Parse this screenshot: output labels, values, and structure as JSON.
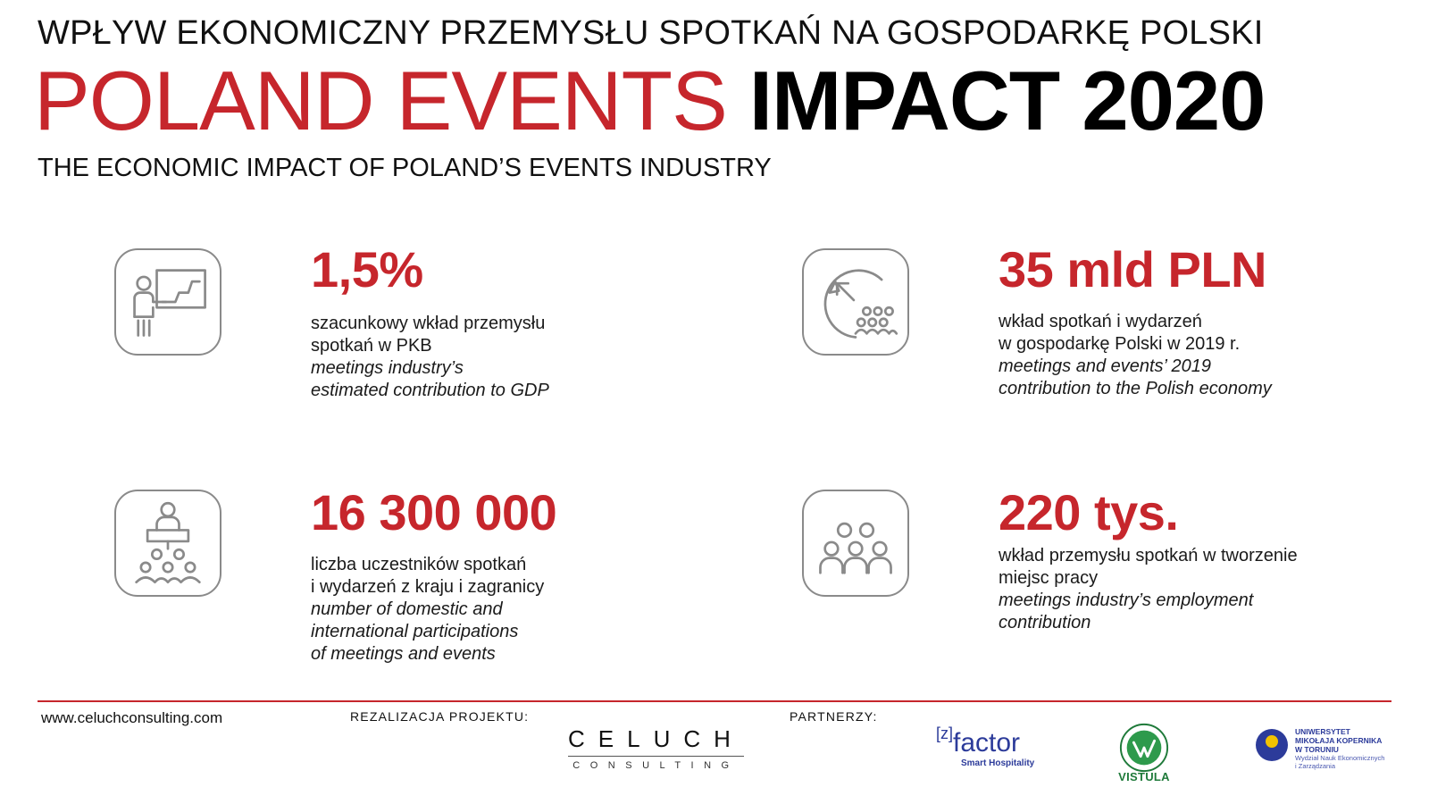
{
  "header": {
    "title_pl": "WPŁYW EKONOMICZNY PRZEMYSŁU SPOTKAŃ NA GOSPODARKĘ POLSKI",
    "title_main_red": "POLAND EVENTS",
    "title_main_black": "IMPACT 2020",
    "title_en": "THE ECONOMIC IMPACT OF POLAND’S EVENTS INDUSTRY"
  },
  "stats": [
    {
      "value": "1,5%",
      "pl_lines": [
        "szacunkowy wkład przemysłu",
        "spotkań w PKB"
      ],
      "en_lines": [
        "meetings industry’s",
        "estimated contribution to GDP"
      ],
      "icon": "presenter-chart-icon"
    },
    {
      "value": "35 mld PLN",
      "pl_lines": [
        "wkład spotkań i wydarzeń",
        "w gospodarkę Polski w 2019 r."
      ],
      "en_lines": [
        "meetings and events’ 2019",
        "contribution to the Polish economy"
      ],
      "icon": "growth-arrow-audience-icon"
    },
    {
      "value": "16 300 000",
      "pl_lines": [
        "liczba uczestników spotkań",
        "i wydarzeń z kraju i zagranicy"
      ],
      "en_lines": [
        "number of domestic and",
        "international participations",
        "of meetings and events"
      ],
      "icon": "speaker-podium-audience-icon"
    },
    {
      "value": "220 tys.",
      "pl_lines": [
        "wkład przemysłu spotkań w tworzenie",
        "miejsc pracy"
      ],
      "en_lines": [
        "meetings industry’s employment",
        "contribution"
      ],
      "icon": "group-of-people-icon"
    }
  ],
  "footer": {
    "url": "www.celuchconsulting.com",
    "project_label": "REZALIZACJA PROJEKTU:",
    "partners_label": "PARTNERZY:",
    "celuch_top": "CELUCH",
    "celuch_bottom": "CONSULTING",
    "zfactor_prefix": "[z]",
    "zfactor_name": "factor",
    "zfactor_sub": "Smart Hospitality",
    "vistula_name": "VISTULA",
    "umk_name_lines": [
      "UNIWERSYTET",
      "MIKOŁAJA KOPERNIKA",
      "W TORUNIU"
    ],
    "umk_dept_lines": [
      "Wydział Nauk Ekonomicznych",
      "i Zarządzania"
    ]
  },
  "colors": {
    "accent_red": "#c6262c",
    "icon_gray": "#8a8a8a",
    "partner_blue": "#2c3b9a",
    "vistula_green": "#1f7a3a"
  }
}
